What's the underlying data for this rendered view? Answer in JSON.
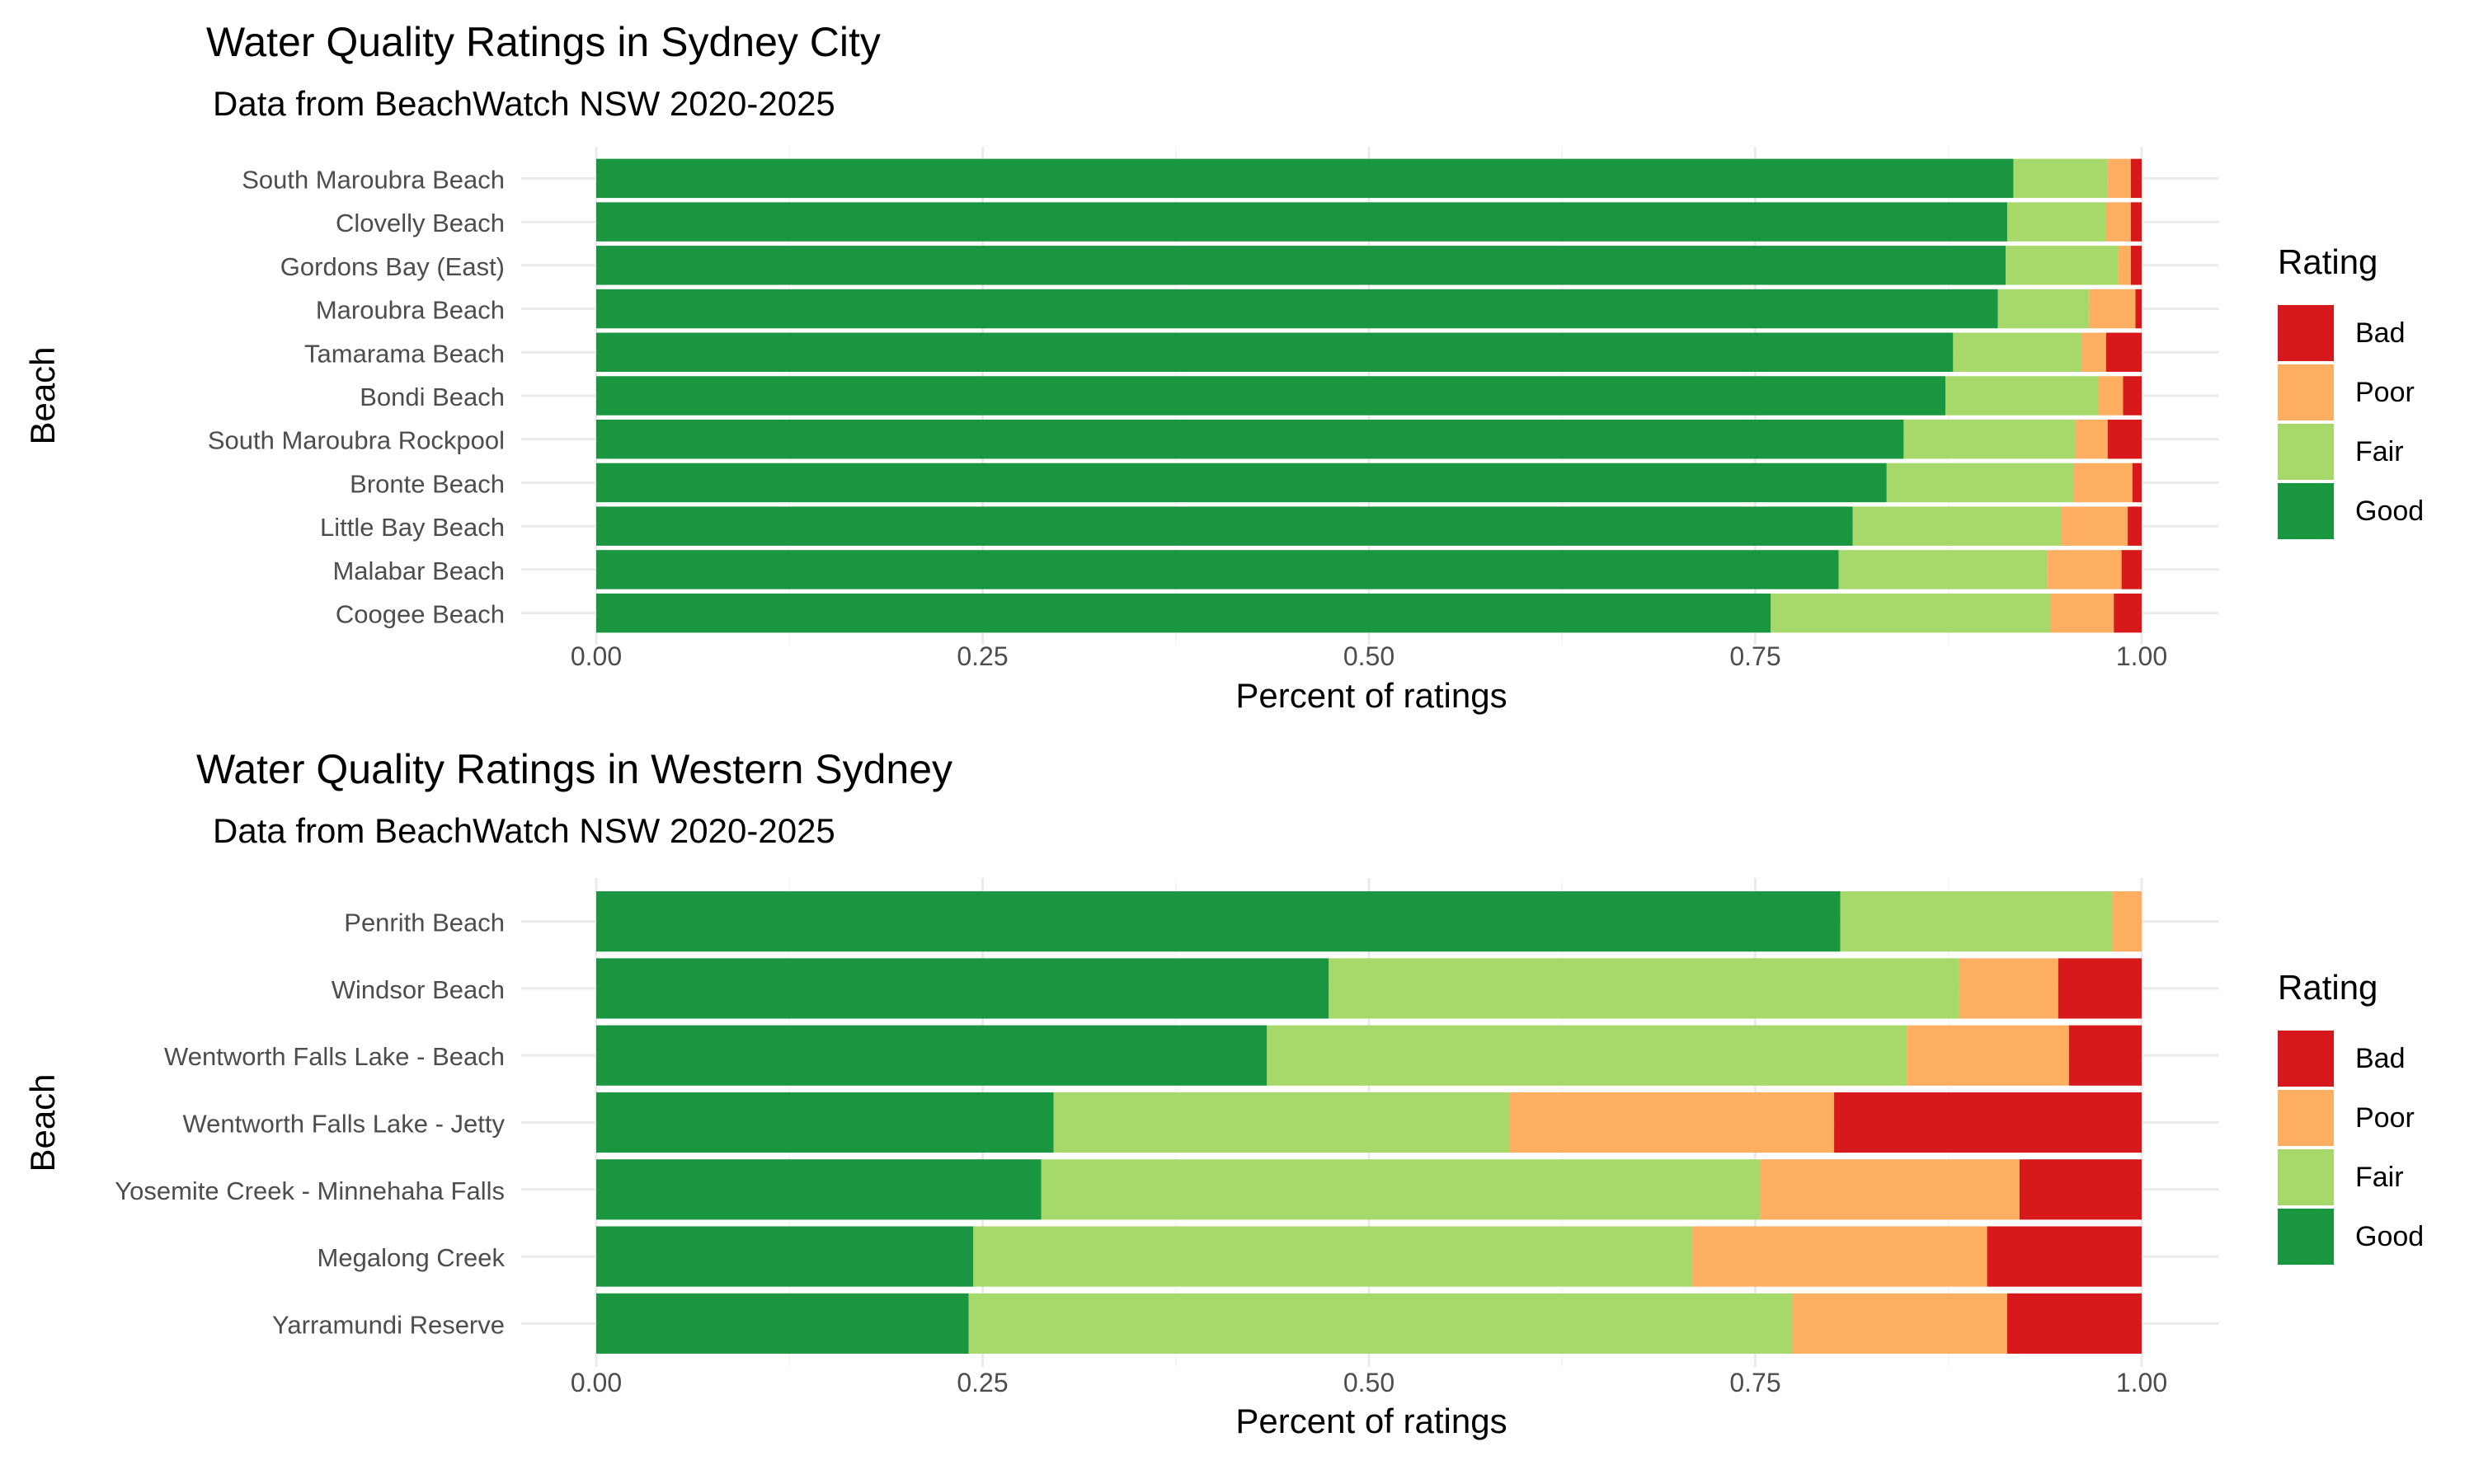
{
  "legend": {
    "title": "Rating",
    "items": [
      {
        "label": "Bad",
        "color": "#d7191c"
      },
      {
        "label": "Poor",
        "color": "#fdae61"
      },
      {
        "label": "Fair",
        "color": "#a6d96a"
      },
      {
        "label": "Good",
        "color": "#1a9641"
      }
    ]
  },
  "chart_data": [
    {
      "type": "bar",
      "orientation": "horizontal",
      "stacked": true,
      "title": "Water Quality Ratings in Sydney City",
      "subtitle": "Data from BeachWatch NSW 2020-2025",
      "xlabel": "Percent of ratings",
      "ylabel": "Beach",
      "xlim": [
        0,
        1
      ],
      "x_ticks": [
        "0.00",
        "0.25",
        "0.50",
        "0.75",
        "1.00"
      ],
      "grid": true,
      "legend_position": "right",
      "categories": [
        "South Maroubra Beach",
        "Clovelly Beach",
        "Gordons Bay (East)",
        "Maroubra Beach",
        "Tamarama Beach",
        "Bondi Beach",
        "South Maroubra Rockpool",
        "Bronte Beach",
        "Little Bay Beach",
        "Malabar Beach",
        "Coogee Beach"
      ],
      "series": [
        {
          "name": "Good",
          "values": [
            0.917,
            0.913,
            0.912,
            0.907,
            0.878,
            0.873,
            0.846,
            0.835,
            0.813,
            0.804,
            0.76
          ]
        },
        {
          "name": "Fair",
          "values": [
            0.061,
            0.064,
            0.073,
            0.059,
            0.083,
            0.099,
            0.111,
            0.121,
            0.135,
            0.135,
            0.181
          ]
        },
        {
          "name": "Poor",
          "values": [
            0.015,
            0.016,
            0.008,
            0.03,
            0.016,
            0.016,
            0.021,
            0.038,
            0.043,
            0.048,
            0.041
          ]
        },
        {
          "name": "Bad",
          "values": [
            0.007,
            0.007,
            0.007,
            0.004,
            0.023,
            0.012,
            0.022,
            0.006,
            0.009,
            0.013,
            0.018
          ]
        }
      ]
    },
    {
      "type": "bar",
      "orientation": "horizontal",
      "stacked": true,
      "title": "Water Quality Ratings in Western Sydney",
      "subtitle": "Data from BeachWatch NSW 2020-2025",
      "xlabel": "Percent of ratings",
      "ylabel": "Beach",
      "xlim": [
        0,
        1
      ],
      "x_ticks": [
        "0.00",
        "0.25",
        "0.50",
        "0.75",
        "1.00"
      ],
      "grid": true,
      "legend_position": "right",
      "categories": [
        "Penrith Beach",
        "Windsor Beach",
        "Wentworth Falls Lake - Beach",
        "Wentworth Falls Lake - Jetty",
        "Yosemite Creek - Minnehaha Falls",
        "Megalong Creek",
        "Yarramundi Reserve"
      ],
      "series": [
        {
          "name": "Good",
          "values": [
            0.805,
            0.474,
            0.434,
            0.296,
            0.288,
            0.244,
            0.241
          ]
        },
        {
          "name": "Fair",
          "values": [
            0.176,
            0.408,
            0.414,
            0.295,
            0.465,
            0.465,
            0.533
          ]
        },
        {
          "name": "Poor",
          "values": [
            0.019,
            0.064,
            0.105,
            0.21,
            0.168,
            0.191,
            0.139
          ]
        },
        {
          "name": "Bad",
          "values": [
            0.0,
            0.054,
            0.047,
            0.199,
            0.079,
            0.1,
            0.087
          ]
        }
      ]
    }
  ]
}
